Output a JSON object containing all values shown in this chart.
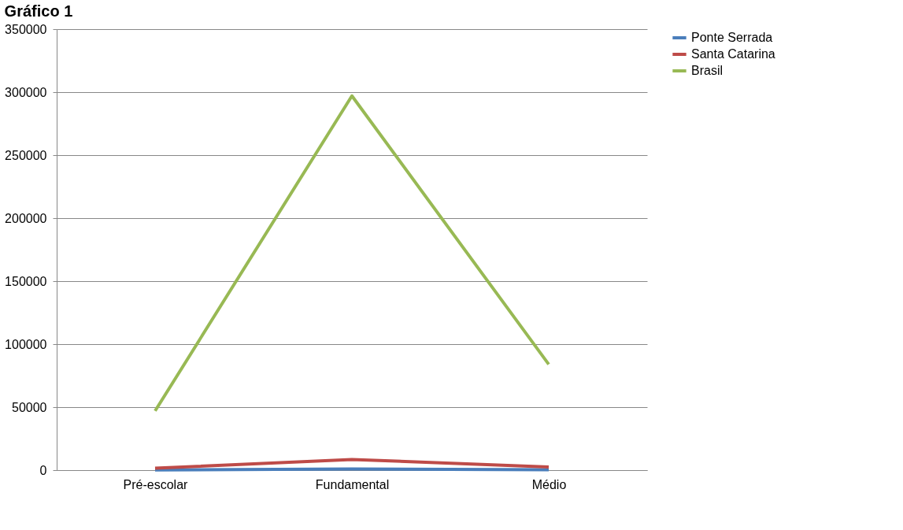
{
  "chart_data": {
    "type": "line",
    "title": "Gráfico 1",
    "categories": [
      "Pré-escolar",
      "Fundamental",
      "Médio"
    ],
    "series": [
      {
        "name": "Ponte Serrada",
        "color": "#4a7ebb",
        "values": [
          200,
          1000,
          300
        ]
      },
      {
        "name": "Santa Catarina",
        "color": "#be4b48",
        "values": [
          1500,
          8500,
          2500
        ]
      },
      {
        "name": "Brasil",
        "color": "#98b954",
        "values": [
          47000,
          297000,
          84000
        ]
      }
    ],
    "ylim": [
      0,
      350000
    ],
    "yticks": [
      0,
      50000,
      100000,
      150000,
      200000,
      250000,
      300000,
      350000
    ],
    "grid": "y",
    "legend": "right",
    "marker": "none",
    "line_style": "solid"
  }
}
